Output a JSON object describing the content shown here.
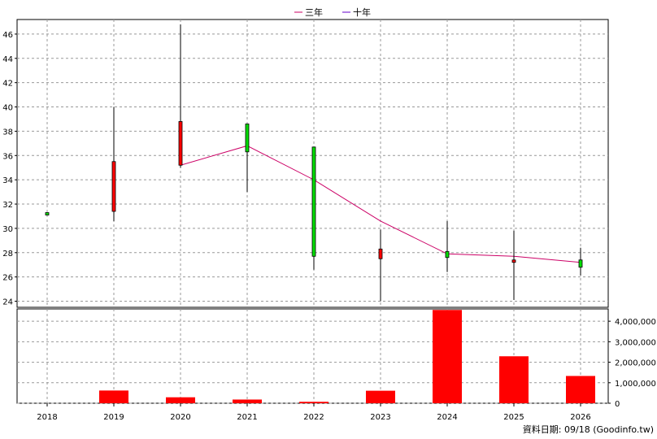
{
  "chart_data": [
    {
      "type": "candlestick",
      "categories": [
        "2018",
        "2019",
        "2020",
        "2021",
        "2022",
        "2023",
        "2024",
        "2025",
        "2026"
      ],
      "candles": [
        {
          "x": "2018",
          "open": 31.2,
          "close": 31.3,
          "high": 31.3,
          "low": 31.1,
          "color": "green"
        },
        {
          "x": "2019",
          "open": 31.4,
          "close": 35.5,
          "high": 40.0,
          "low": 30.6,
          "color": "red"
        },
        {
          "x": "2020",
          "open": 35.2,
          "close": 38.8,
          "high": 46.8,
          "low": 35.0,
          "color": "red"
        },
        {
          "x": "2021",
          "open": 38.6,
          "close": 36.3,
          "high": 38.6,
          "low": 33.0,
          "color": "green"
        },
        {
          "x": "2022",
          "open": 36.7,
          "close": 27.7,
          "high": 36.7,
          "low": 26.6,
          "color": "green"
        },
        {
          "x": "2023",
          "open": 27.5,
          "close": 28.3,
          "high": 29.9,
          "low": 24.0,
          "color": "red"
        },
        {
          "x": "2024",
          "open": 28.1,
          "close": 27.6,
          "high": 30.6,
          "low": 26.4,
          "color": "green"
        },
        {
          "x": "2025",
          "open": 27.3,
          "close": 27.4,
          "high": 29.8,
          "low": 24.1,
          "color": "red"
        },
        {
          "x": "2026",
          "open": 27.4,
          "close": 26.8,
          "high": 28.4,
          "low": 26.1,
          "color": "green"
        }
      ],
      "series": [
        {
          "name": "三年",
          "color": "#cc0066",
          "points": [
            {
              "x": "2020",
              "y": 35.2
            },
            {
              "x": "2021",
              "y": 36.8
            },
            {
              "x": "2022",
              "y": 34.0
            },
            {
              "x": "2023",
              "y": 30.6
            },
            {
              "x": "2024",
              "y": 27.9
            },
            {
              "x": "2025",
              "y": 27.7
            },
            {
              "x": "2026",
              "y": 27.2
            }
          ]
        },
        {
          "name": "十年",
          "color": "#6600cc",
          "points": []
        }
      ],
      "ylim": [
        23.5,
        47.2
      ],
      "yticks": [
        24,
        26,
        28,
        30,
        32,
        34,
        36,
        38,
        40,
        42,
        44,
        46
      ],
      "grid": true,
      "legend": "top-center"
    },
    {
      "type": "bar",
      "categories": [
        "2018",
        "2019",
        "2020",
        "2021",
        "2022",
        "2023",
        "2024",
        "2025",
        "2026"
      ],
      "values": [
        0,
        620000,
        290000,
        180000,
        70000,
        610000,
        4550000,
        2290000,
        1330000
      ],
      "ylim": [
        0,
        4600000
      ],
      "yticks": [
        0,
        1000000,
        2000000,
        3000000,
        4000000
      ],
      "ytick_labels": [
        "0",
        "1,000,000",
        "2,000,000",
        "3,000,000",
        "4,000,000"
      ],
      "color": "#ff0000",
      "grid": true
    }
  ],
  "footer": {
    "text": "資料日期: 09/18  (Goodinfo.tw)"
  }
}
